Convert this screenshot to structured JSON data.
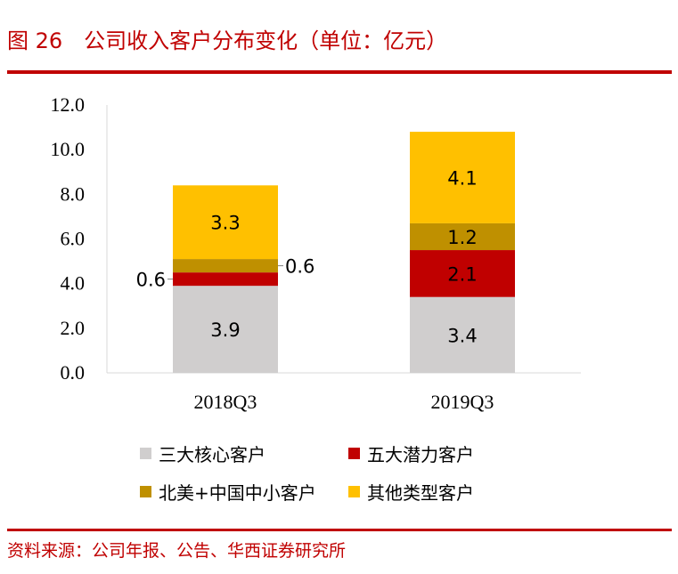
{
  "title": "图 26　公司收入客户分布变化（单位：亿元）",
  "source": "资料来源：公司年报、公告、华西证券研究所",
  "chart_data": {
    "type": "bar",
    "stacked": true,
    "title": "",
    "xlabel": "",
    "ylabel": "",
    "categories": [
      "2018Q3",
      "2019Q3"
    ],
    "ylim": [
      0,
      12
    ],
    "yticks": [
      "0.0",
      "2.0",
      "4.0",
      "6.0",
      "8.0",
      "10.0",
      "12.0"
    ],
    "grid": false,
    "legend_position": "bottom",
    "series": [
      {
        "name": "三大核心客户",
        "values": [
          3.9,
          3.4
        ],
        "color": "#d0cece"
      },
      {
        "name": "五大潜力客户",
        "values": [
          0.6,
          2.1
        ],
        "color": "#c00000"
      },
      {
        "name": "北美+中国中小客户",
        "values": [
          0.6,
          1.2
        ],
        "color": "#bf9000"
      },
      {
        "name": "其他类型客户",
        "values": [
          3.3,
          4.1
        ],
        "color": "#ffc000"
      }
    ]
  }
}
